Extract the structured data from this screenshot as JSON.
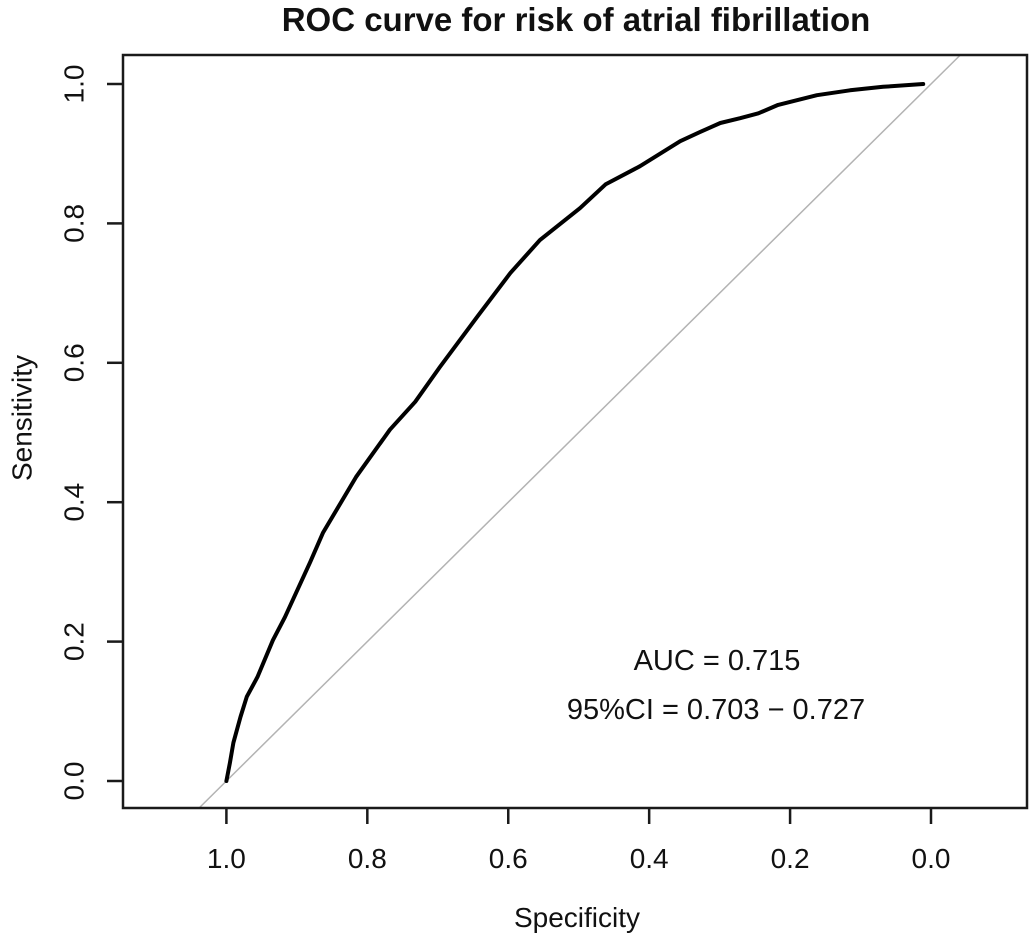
{
  "chart_data": {
    "type": "line",
    "title": "ROC curve for risk of atrial fibrillation",
    "xlabel": "Specificity",
    "ylabel": "Sensitivity",
    "x_axis": {
      "label": "Specificity",
      "ticks": [
        1.0,
        0.8,
        0.6,
        0.4,
        0.2,
        0.0
      ],
      "tick_labels": [
        "1.0",
        "0.8",
        "0.6",
        "0.4",
        "0.2",
        "0.0"
      ],
      "reversed": true,
      "range": [
        1.0,
        0.0
      ]
    },
    "y_axis": {
      "label": "Sensitivity",
      "ticks": [
        0.0,
        0.2,
        0.4,
        0.6,
        0.8,
        1.0
      ],
      "tick_labels": [
        "0.0",
        "0.2",
        "0.4",
        "0.6",
        "0.8",
        "1.0"
      ],
      "range": [
        0.0,
        1.0
      ]
    },
    "grid": false,
    "legend": false,
    "auc": 0.715,
    "ci_95": [
      0.703,
      0.727
    ],
    "series": [
      {
        "name": "ROC curve",
        "color": "#000000",
        "line_width": 4,
        "points_format": "[specificity, sensitivity]",
        "points": [
          [
            1.0,
            0.0
          ],
          [
            0.995,
            0.026
          ],
          [
            0.99,
            0.055
          ],
          [
            0.98,
            0.092
          ],
          [
            0.971,
            0.121
          ],
          [
            0.956,
            0.149
          ],
          [
            0.934,
            0.202
          ],
          [
            0.917,
            0.235
          ],
          [
            0.881,
            0.314
          ],
          [
            0.863,
            0.356
          ],
          [
            0.816,
            0.436
          ],
          [
            0.768,
            0.504
          ],
          [
            0.732,
            0.544
          ],
          [
            0.697,
            0.594
          ],
          [
            0.644,
            0.666
          ],
          [
            0.597,
            0.729
          ],
          [
            0.555,
            0.776
          ],
          [
            0.498,
            0.822
          ],
          [
            0.462,
            0.856
          ],
          [
            0.413,
            0.882
          ],
          [
            0.356,
            0.918
          ],
          [
            0.328,
            0.931
          ],
          [
            0.299,
            0.944
          ],
          [
            0.271,
            0.951
          ],
          [
            0.245,
            0.958
          ],
          [
            0.217,
            0.97
          ],
          [
            0.162,
            0.984
          ],
          [
            0.115,
            0.991
          ],
          [
            0.068,
            0.996
          ],
          [
            0.011,
            1.0
          ]
        ]
      }
    ],
    "reference_line": {
      "name": "chance line",
      "color": "#b3b3b3",
      "line_width": 1.5,
      "from": [
        1.0,
        0.0
      ],
      "to": [
        0.0,
        1.0
      ],
      "extended_to_plot_box": true
    },
    "annotations": [
      {
        "text": "AUC = 0.715",
        "specificity": 0.304,
        "sensitivity": 0.174
      },
      {
        "text": "95%CI = 0.703 − 0.727",
        "specificity": 0.305,
        "sensitivity": 0.103
      }
    ],
    "colors": {
      "curve": "#000000",
      "reference_line": "#b3b3b3",
      "frame": "#1a1a1a",
      "text": "#111111",
      "background": "#ffffff"
    }
  }
}
